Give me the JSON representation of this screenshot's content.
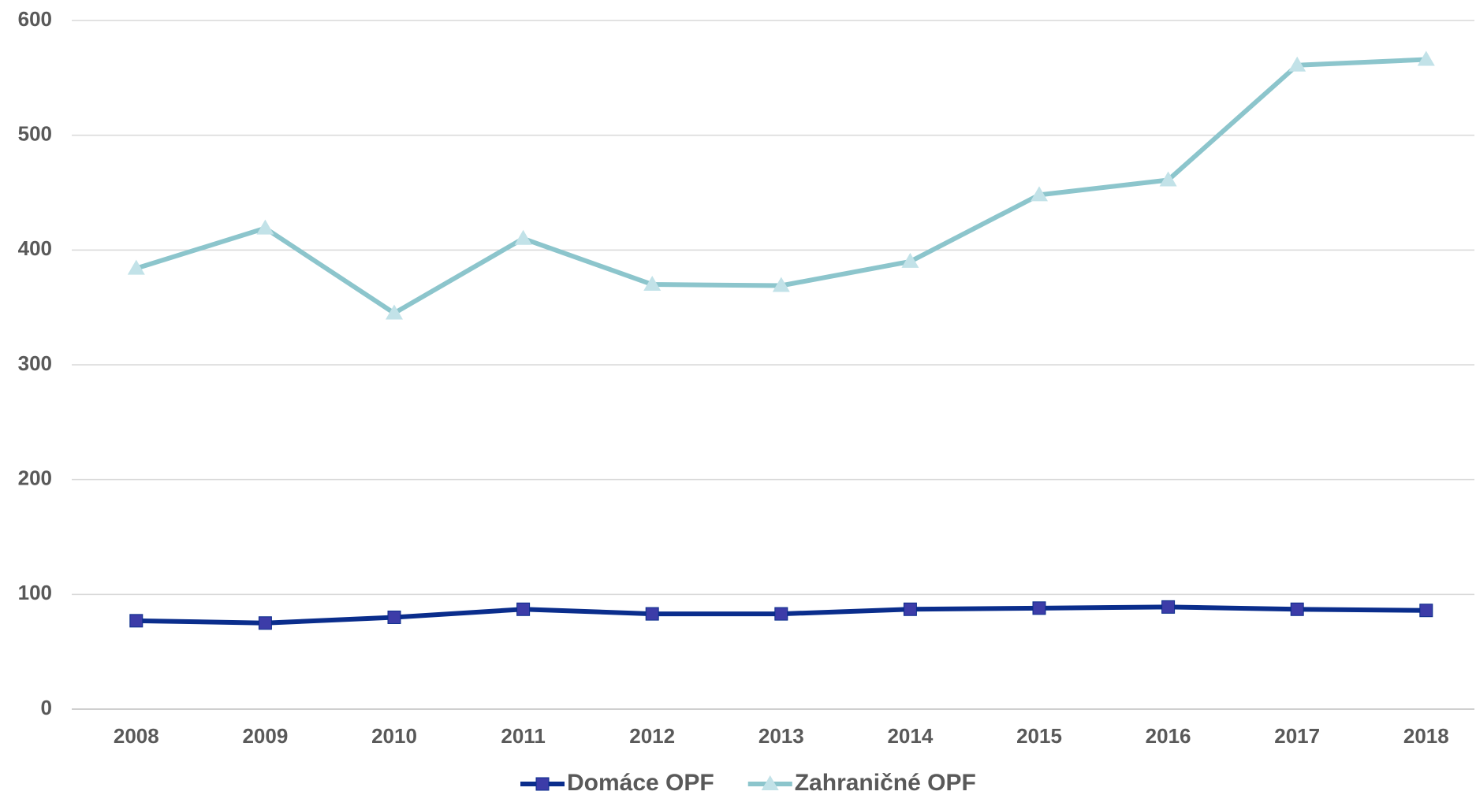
{
  "chart_data": {
    "type": "line",
    "categories": [
      "2008",
      "2009",
      "2010",
      "2011",
      "2012",
      "2013",
      "2014",
      "2015",
      "2016",
      "2017",
      "2018"
    ],
    "series": [
      {
        "name": "Domáce OPF",
        "color": "#0a2d8c",
        "marker_color": "#3c3ca8",
        "marker": "square",
        "values": [
          77,
          75,
          80,
          87,
          83,
          83,
          87,
          88,
          89,
          87,
          86
        ]
      },
      {
        "name": "Zahraničné OPF",
        "color": "#8cc5cc",
        "marker_color": "#c2e2e8",
        "marker": "triangle",
        "values": [
          384,
          419,
          345,
          410,
          370,
          369,
          390,
          448,
          461,
          561,
          566
        ]
      }
    ],
    "ylim": [
      0,
      600
    ],
    "yticks": [
      0,
      100,
      200,
      300,
      400,
      500,
      600
    ],
    "grid": true,
    "legend": "bottom"
  }
}
